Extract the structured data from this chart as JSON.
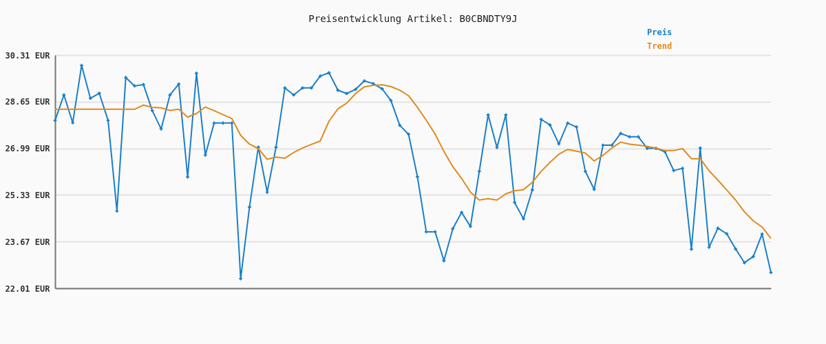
{
  "chart_data": {
    "type": "line",
    "title": "Preisentwicklung Artikel: B0CBNDTY9J",
    "categories": [
      null,
      null,
      null,
      null,
      null,
      null,
      null,
      null,
      null,
      null,
      null,
      null,
      null,
      null,
      null,
      null,
      null,
      null,
      null,
      null,
      null,
      null,
      null,
      null,
      null,
      null,
      null,
      null,
      null,
      null,
      null,
      null,
      null,
      null,
      null,
      null,
      null,
      null,
      null,
      null,
      null,
      null,
      null,
      null,
      null,
      null,
      null,
      null,
      null,
      null,
      null,
      null,
      null,
      null,
      null,
      null,
      null,
      null,
      null,
      null,
      null,
      null,
      null,
      null,
      null,
      null,
      null,
      null,
      null,
      null,
      null,
      null,
      null,
      null,
      null,
      null,
      null,
      null,
      null,
      null,
      null,
      null
    ],
    "series": [
      {
        "name": "Preis",
        "color": "#1a7fc9",
        "marker": "cross",
        "values": [
          27.98,
          28.89,
          27.9,
          29.94,
          28.77,
          28.95,
          27.98,
          24.76,
          29.51,
          29.21,
          29.26,
          28.33,
          27.68,
          28.89,
          29.28,
          25.97,
          29.66,
          26.75,
          27.89,
          27.89,
          27.89,
          22.35,
          24.9,
          27.03,
          25.43,
          27.03,
          29.14,
          28.89,
          29.14,
          29.14,
          29.56,
          29.68,
          29.06,
          28.94,
          29.09,
          29.39,
          29.29,
          29.11,
          28.69,
          27.81,
          27.49,
          25.98,
          24.02,
          24.02,
          22.99,
          24.13,
          24.71,
          24.21,
          26.17,
          28.18,
          27.02,
          28.18,
          25.06,
          24.48,
          25.51,
          28.02,
          27.82,
          27.15,
          27.89,
          27.75,
          26.17,
          25.53,
          27.1,
          27.1,
          27.52,
          27.4,
          27.4,
          26.99,
          26.99,
          26.87,
          26.2,
          26.28,
          23.4,
          27.0,
          23.47,
          24.15,
          23.95,
          23.41,
          22.92,
          23.14,
          23.94,
          22.57
        ]
      },
      {
        "name": "Trend",
        "color": "#e08a1e",
        "marker": "none",
        "values": [
          28.38,
          28.38,
          28.38,
          28.38,
          28.38,
          28.38,
          28.38,
          28.38,
          28.38,
          28.38,
          28.53,
          28.45,
          28.43,
          28.34,
          28.38,
          28.1,
          28.23,
          28.46,
          28.33,
          28.19,
          28.05,
          27.45,
          27.14,
          26.98,
          26.6,
          26.68,
          26.64,
          26.84,
          27.0,
          27.13,
          27.25,
          27.96,
          28.39,
          28.6,
          28.94,
          29.18,
          29.23,
          29.25,
          29.19,
          29.06,
          28.86,
          28.45,
          27.99,
          27.5,
          26.88,
          26.34,
          25.92,
          25.43,
          25.15,
          25.2,
          25.15,
          25.37,
          25.48,
          25.52,
          25.78,
          26.17,
          26.49,
          26.78,
          26.95,
          26.89,
          26.82,
          26.54,
          26.74,
          27.0,
          27.21,
          27.14,
          27.1,
          27.06,
          27.0,
          26.91,
          26.91,
          26.98,
          26.62,
          26.62,
          26.19,
          25.86,
          25.51,
          25.15,
          24.73,
          24.41,
          24.19,
          23.78
        ]
      }
    ],
    "ylim": [
      22.01,
      30.31
    ],
    "yticks": [
      {
        "value": 22.01,
        "label": "22.01 EUR"
      },
      {
        "value": 23.67,
        "label": "23.67 EUR"
      },
      {
        "value": 25.33,
        "label": "25.33 EUR"
      },
      {
        "value": 26.99,
        "label": "26.99 EUR"
      },
      {
        "value": 28.65,
        "label": "28.65 EUR"
      },
      {
        "value": 30.31,
        "label": "30.31 EUR"
      }
    ],
    "grid": "y",
    "legend": "top right",
    "line_style": "solid"
  }
}
